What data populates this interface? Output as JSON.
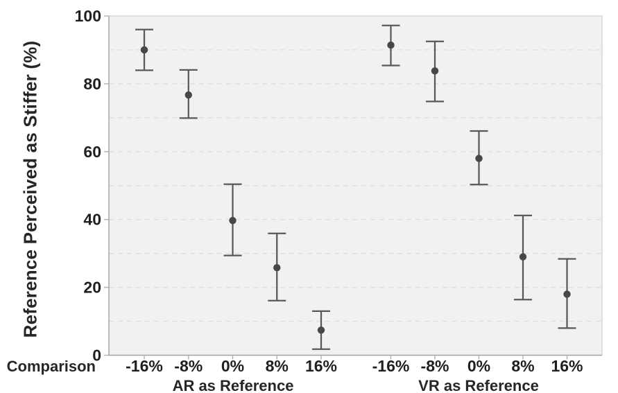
{
  "chart_data": {
    "type": "scatter",
    "title": "",
    "ylabel": "Reference Perceived as Stiffer (%)",
    "xlabel": "Comparison",
    "ylim": [
      0,
      100
    ],
    "yticks": [
      0,
      20,
      40,
      60,
      80,
      100
    ],
    "ytick_labels": [
      "0",
      "20",
      "40",
      "60",
      "80",
      "100"
    ],
    "grid": {
      "horizontal": true,
      "step": 10,
      "style": "dashed"
    },
    "legend_position": "none",
    "marker": "filled circle with vertical error bars (confidence intervals)",
    "groups": [
      {
        "label": "AR as Reference",
        "categories": [
          "-16%",
          "-8%",
          "0%",
          "8%",
          "16%"
        ],
        "points": [
          {
            "category": "-16%",
            "mean": 90.0,
            "ci_low": 84.0,
            "ci_high": 96.0
          },
          {
            "category": "-8%",
            "mean": 76.7,
            "ci_low": 69.9,
            "ci_high": 84.1
          },
          {
            "category": "0%",
            "mean": 39.7,
            "ci_low": 29.4,
            "ci_high": 50.4
          },
          {
            "category": "8%",
            "mean": 25.8,
            "ci_low": 16.1,
            "ci_high": 35.9
          },
          {
            "category": "16%",
            "mean": 7.4,
            "ci_low": 1.8,
            "ci_high": 13.0
          }
        ]
      },
      {
        "label": "VR as Reference",
        "categories": [
          "-16%",
          "-8%",
          "0%",
          "8%",
          "16%"
        ],
        "points": [
          {
            "category": "-16%",
            "mean": 91.4,
            "ci_low": 85.4,
            "ci_high": 97.2
          },
          {
            "category": "-8%",
            "mean": 83.8,
            "ci_low": 74.8,
            "ci_high": 92.5
          },
          {
            "category": "0%",
            "mean": 58.0,
            "ci_low": 50.3,
            "ci_high": 66.1
          },
          {
            "category": "8%",
            "mean": 29.0,
            "ci_low": 16.4,
            "ci_high": 41.2
          },
          {
            "category": "16%",
            "mean": 18.0,
            "ci_low": 8.0,
            "ci_high": 28.4
          }
        ]
      }
    ],
    "colors": {
      "point": "#47474a",
      "error_bar": "#58585a",
      "plot_background": "#f2f1ef",
      "plot_border": "#c8c8c6",
      "gridline": "#dcdcda",
      "axis_line": "#a3a3a1",
      "tick": "#b0b0ae",
      "text": "#1f1f1f"
    }
  }
}
